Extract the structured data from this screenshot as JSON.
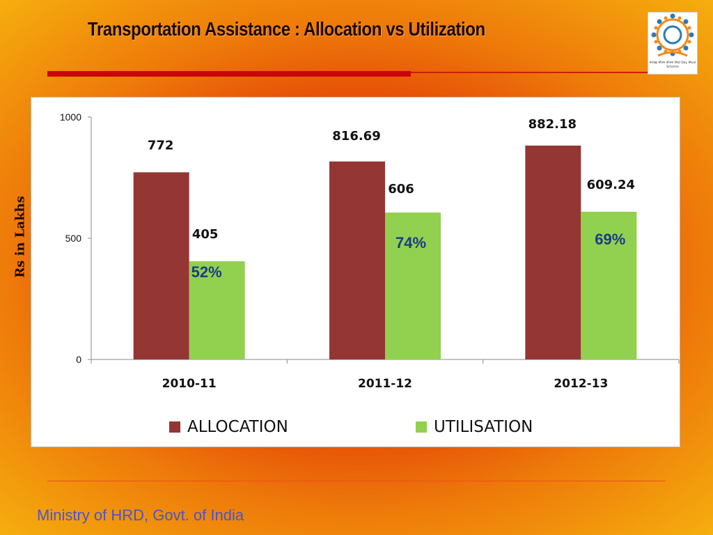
{
  "slide": {
    "title": "Transportation Assistance : Allocation vs Utilization",
    "ylabel": "Rs in Lakhs",
    "footer": "Ministry of HRD, Govt. of India",
    "logo_caption": "मध्याह्न भोजन योजना Mid Day Meal Scheme"
  },
  "colors": {
    "allocation": "#943634",
    "utilisation": "#92d050",
    "title_rule": "#c8060a",
    "footer_text": "#4a55c8"
  },
  "chart_data": {
    "type": "bar",
    "categories": [
      "2010-11",
      "2011-12",
      "2012-13"
    ],
    "series": [
      {
        "name": "ALLOCATION",
        "values": [
          772,
          816.69,
          882.18
        ],
        "labels": [
          "772",
          "816.69",
          "882.18"
        ]
      },
      {
        "name": "UTILISATION",
        "values": [
          405,
          606,
          609.24
        ],
        "labels": [
          "405",
          "606",
          "609.24"
        ]
      }
    ],
    "utilization_percent_labels": [
      "52%",
      "74%",
      "69%"
    ],
    "ylim": [
      0,
      1000
    ],
    "yticks": [
      "0",
      "500",
      "1000"
    ],
    "title": "",
    "xlabel": "",
    "ylabel": "Rs in Lakhs",
    "legend": "bottom",
    "grid": false
  }
}
